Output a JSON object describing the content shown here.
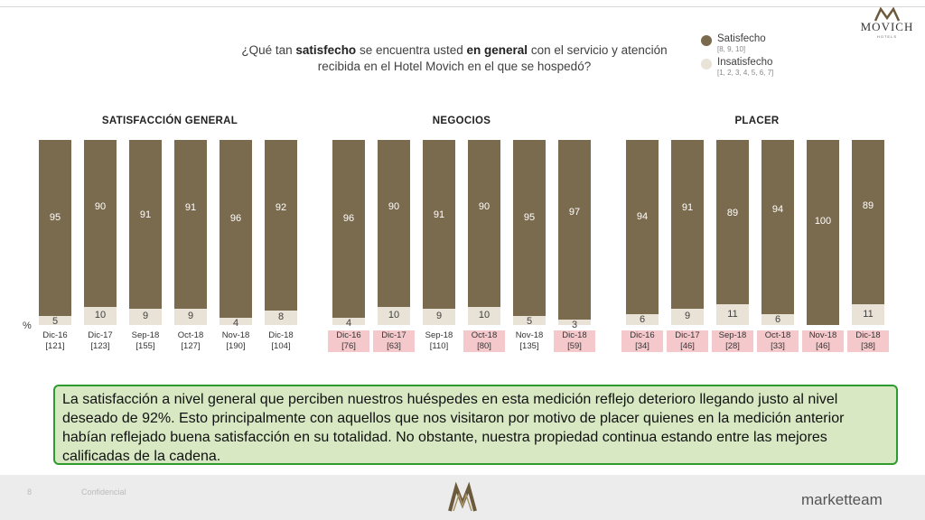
{
  "header": {
    "brand": "MOVICH",
    "brand_sub": "HOTELS",
    "question_pre": "¿Qué tan ",
    "question_b1": "satisfecho",
    "question_mid": " se encuentra usted ",
    "question_b2": "en general",
    "question_post": " con el servicio y atención recibida en el Hotel Movich en el que se hospedó?"
  },
  "legend": {
    "satisfied_label": "Satisfecho",
    "satisfied_note": "[8, 9, 10]",
    "unsatisfied_label": "Insatisfecho",
    "unsatisfied_note": "[1, 2, 3, 4, 5, 6, 7]"
  },
  "colors": {
    "satisfied": "#7b6b4e",
    "unsatisfied": "#e9e2d6",
    "highlight": "#f5c9cc",
    "note_bg": "#d7e8c3",
    "note_border": "#2e9b2e"
  },
  "axis_unit": "%",
  "chart_data": [
    {
      "type": "bar",
      "stacked": true,
      "title": "SATISFACCIÓN GENERAL",
      "categories": [
        "Dic-16",
        "Dic-17",
        "Sep-18",
        "Oct-18",
        "Nov-18",
        "Dic-18"
      ],
      "bases": [
        "[121]",
        "[123]",
        "[155]",
        "[127]",
        "[190]",
        "[104]"
      ],
      "highlighted": [
        false,
        false,
        false,
        false,
        false,
        false
      ],
      "series": [
        {
          "name": "Satisfecho",
          "values": [
            95,
            90,
            91,
            91,
            96,
            92
          ]
        },
        {
          "name": "Insatisfecho",
          "values": [
            5,
            10,
            9,
            9,
            4,
            8
          ]
        }
      ],
      "ylim": [
        0,
        100
      ]
    },
    {
      "type": "bar",
      "stacked": true,
      "title": "NEGOCIOS",
      "categories": [
        "Dic-16",
        "Dic-17",
        "Sep-18",
        "Oct-18",
        "Nov-18",
        "Dic-18"
      ],
      "bases": [
        "[76]",
        "[63]",
        "[110]",
        "[80]",
        "[135]",
        "[59]"
      ],
      "highlighted": [
        true,
        true,
        false,
        true,
        false,
        true
      ],
      "series": [
        {
          "name": "Satisfecho",
          "values": [
            96,
            90,
            91,
            90,
            95,
            97
          ]
        },
        {
          "name": "Insatisfecho",
          "values": [
            4,
            10,
            9,
            10,
            5,
            3
          ]
        }
      ],
      "ylim": [
        0,
        100
      ]
    },
    {
      "type": "bar",
      "stacked": true,
      "title": "PLACER",
      "categories": [
        "Dic-16",
        "Dic-17",
        "Sep-18",
        "Oct-18",
        "Nov-18",
        "Dic-18"
      ],
      "bases": [
        "[34]",
        "[46]",
        "[28]",
        "[33]",
        "[46]",
        "[38]"
      ],
      "highlighted": [
        true,
        true,
        true,
        true,
        true,
        true
      ],
      "series": [
        {
          "name": "Satisfecho",
          "values": [
            94,
            91,
            89,
            94,
            100,
            89
          ]
        },
        {
          "name": "Insatisfecho",
          "values": [
            6,
            9,
            11,
            6,
            0,
            11
          ]
        }
      ],
      "ylim": [
        0,
        100
      ]
    }
  ],
  "note": "La satisfacción a nivel general que perciben nuestros huéspedes en esta medición reflejo deterioro llegando justo al nivel deseado de 92%. Esto principalmente con aquellos que nos visitaron por motivo de placer quienes en la medición anterior habían reflejado buena satisfacción en su totalidad. No obstante, nuestra propiedad continua estando entre las mejores calificadas de la cadena.",
  "footer": {
    "page": "8",
    "confidential": "Confidencial",
    "company": "marketteam"
  }
}
